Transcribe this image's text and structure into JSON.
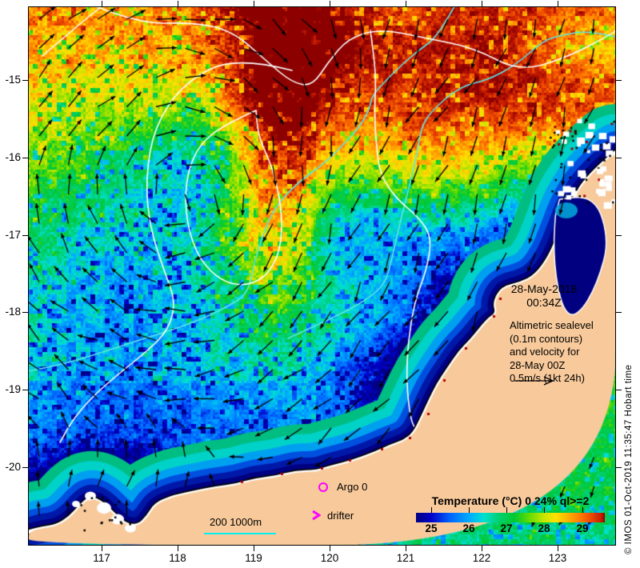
{
  "axes": {
    "x_tick_labels": [
      "117",
      "118",
      "119",
      "120",
      "121",
      "122",
      "123"
    ],
    "y_tick_labels": [
      "-15",
      "-16",
      "-17",
      "-18",
      "-19",
      "-20"
    ]
  },
  "annotations": {
    "datetime_line1": "28-May-2018",
    "datetime_line2": "00:34Z",
    "altimetric_note": [
      "Altimetric sealevel",
      "(0.1m contours)",
      "and velocity for",
      "28-May 00Z",
      "0.5m/s (1kt 24h)"
    ],
    "argo_label": "Argo 0",
    "drifter_label": "drifter",
    "isobath_label": "200  1000m",
    "credit": "© IMOS 01-Oct-2019 11:35:47 Hobart time"
  },
  "colorbar": {
    "title": "Temperature (°C) 0 24% ql>=2",
    "tick_labels": [
      "25",
      "26",
      "27",
      "28",
      "29"
    ],
    "range_min": 24.6,
    "range_max": 29.6,
    "stops": [
      "#000080",
      "#0000C8",
      "#0064FF",
      "#00AAFF",
      "#00E0D0",
      "#00D070",
      "#00C832",
      "#64DC00",
      "#C8E600",
      "#FFE100",
      "#FFB400",
      "#FF8200",
      "#F05000",
      "#C81E00",
      "#8C0000"
    ]
  },
  "colors": {
    "land": "#F8CA9B",
    "coast_cold": "#000080",
    "sealevel_contour": "#FFFFFF",
    "bathymetry_contour": "#5CE6E6",
    "marker_magenta": "#FF00FF",
    "vector_black": "#000000"
  }
}
